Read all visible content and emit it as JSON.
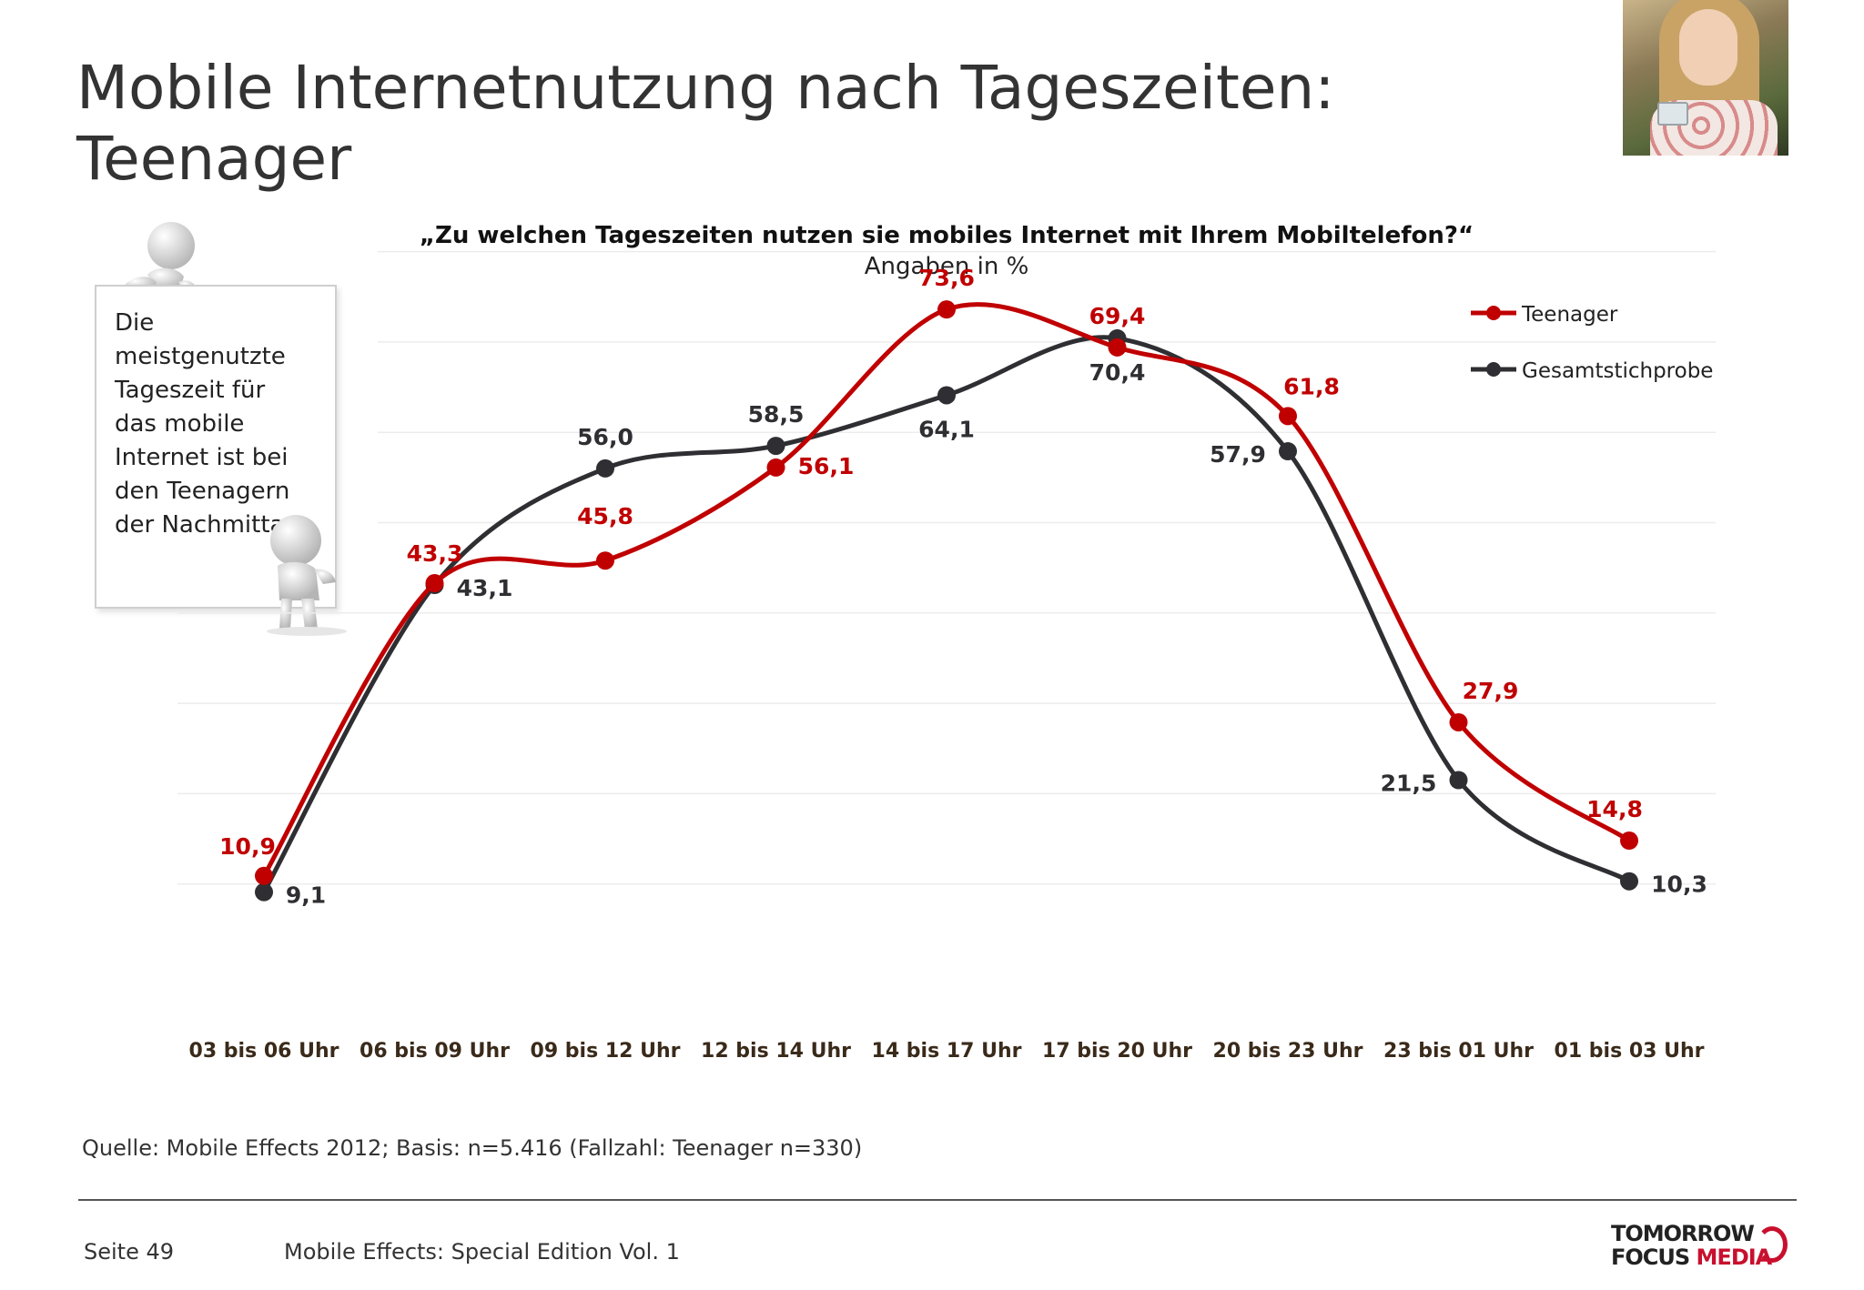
{
  "title": {
    "line1": "Mobile Internetnutzung nach Tageszeiten:",
    "line2": "Teenager"
  },
  "callout": {
    "text": "Die meistgenutzte Tageszeit für das mobile Internet ist bei den Teenagern der Nachmittag."
  },
  "colors": {
    "teen": "#c00000",
    "total": "#2f2f33",
    "grid": "#ececec",
    "xlabel": "#3a2a1a"
  },
  "footer": {
    "source": "Quelle: Mobile Effects 2012; Basis: n=5.416 (Fallzahl: Teenager n=330)",
    "page": "Seite 49",
    "publication": "Mobile Effects: Special Edition Vol. 1",
    "logo_line1": "TOMORROW",
    "logo_line2a": "FOCUS",
    "logo_line2b": "MEDIA"
  },
  "chart_data": {
    "type": "line",
    "title": "„Zu welchen Tageszeiten nutzen sie mobiles Internet mit Ihrem Mobiltelefon?“",
    "subtitle": "Angaben in %",
    "categories": [
      "03 bis 06 Uhr",
      "06 bis 09 Uhr",
      "09 bis 12 Uhr",
      "12 bis 14 Uhr",
      "14 bis 17 Uhr",
      "17 bis 20 Uhr",
      "20 bis 23 Uhr",
      "23 bis 01 Uhr",
      "01 bis 03 Uhr"
    ],
    "series": [
      {
        "name": "Teenager",
        "values": [
          10.9,
          43.3,
          45.8,
          56.1,
          73.6,
          69.4,
          61.8,
          27.9,
          14.8
        ],
        "labels": [
          "10,9",
          "43,3",
          "45,8",
          "56,1",
          "73,6",
          "69,4",
          "61,8",
          "27,9",
          "14,8"
        ]
      },
      {
        "name": "Gesamtstichprobe",
        "values": [
          9.1,
          43.1,
          56.0,
          58.5,
          64.1,
          70.4,
          57.9,
          21.5,
          10.3
        ],
        "labels": [
          "9,1",
          "43,1",
          "56,0",
          "58,5",
          "64,1",
          "70,4",
          "57,9",
          "21,5",
          "10,3"
        ]
      }
    ],
    "ylim": [
      0,
      80
    ],
    "grid": true,
    "legend_position": "top-right",
    "smooth": true
  }
}
